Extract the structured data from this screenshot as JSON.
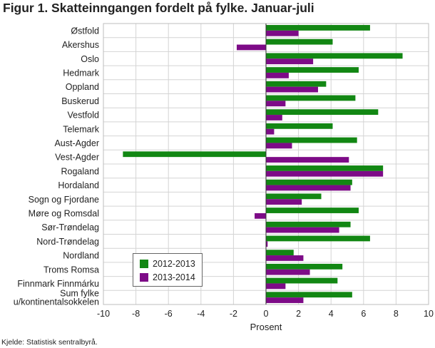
{
  "chart_data": {
    "type": "bar",
    "orientation": "horizontal",
    "title": "Figur 1. Skatteinngangen fordelt på fylke. Januar-juli",
    "xlabel": "Prosent",
    "ylabel": "",
    "xlim": [
      -10,
      10
    ],
    "xticks": [
      -10,
      -8,
      -6,
      -4,
      -2,
      0,
      2,
      4,
      6,
      8,
      10
    ],
    "grid": true,
    "legend_position": "bottom-left",
    "categories": [
      "Østfold",
      "Akershus",
      "Oslo",
      "Hedmark",
      "Oppland",
      "Buskerud",
      "Vestfold",
      "Telemark",
      "Aust-Agder",
      "Vest-Agder",
      "Rogaland",
      "Hordaland",
      "Sogn og Fjordane",
      "Møre og Romsdal",
      "Sør-Trøndelag",
      "Nord-Trøndelag",
      "Nordland",
      "Troms Romsa",
      "Finnmark Finnmárku",
      [
        "Sum fylke",
        "u/kontinentalsokkelen"
      ]
    ],
    "series": [
      {
        "name": "2012-2013",
        "color": "#128713",
        "values": [
          6.4,
          4.1,
          8.4,
          5.7,
          3.7,
          5.5,
          6.9,
          4.1,
          5.6,
          -8.8,
          7.2,
          5.3,
          3.4,
          5.7,
          5.2,
          6.4,
          1.7,
          4.7,
          4.4,
          5.3
        ]
      },
      {
        "name": "2013-2014",
        "color": "#7D0B87",
        "values": [
          2.0,
          -1.8,
          2.9,
          1.4,
          3.2,
          1.2,
          1.0,
          0.5,
          1.6,
          5.1,
          7.2,
          5.2,
          2.2,
          -0.7,
          4.5,
          0.1,
          2.3,
          2.7,
          1.2,
          2.3
        ]
      }
    ]
  },
  "source": "Kjelde: Statistisk sentralbyrå."
}
